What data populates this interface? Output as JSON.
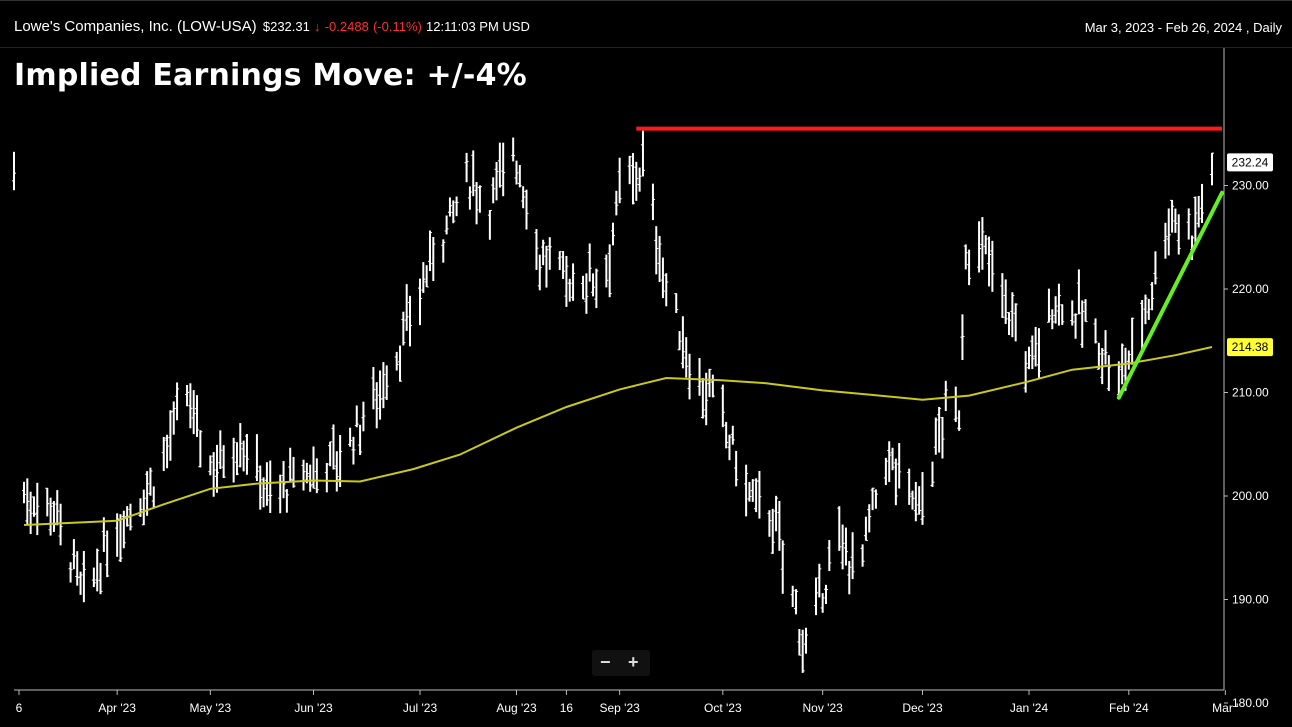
{
  "header": {
    "company": "Lowe's Companies, Inc.",
    "symbol": "(LOW-USA)",
    "price": "$232.31",
    "change": "-0.2488",
    "change_pct": "(-0.11%)",
    "time": "12:11:03 PM USD",
    "range": "Mar 3, 2023 - Feb 26, 2024 , Daily",
    "down_color": "#ff3030"
  },
  "headline": "Implied Earnings Move: +/-4%",
  "zoom": {
    "minus": "−",
    "plus": "+"
  },
  "chart_data": {
    "type": "bar",
    "style": "ohlc-daily",
    "x_tick_labels": [
      "6",
      "Apr '23",
      "May '23",
      "Jun '23",
      "Jul '23",
      "Aug '23",
      "16",
      "Sep '23",
      "Oct '23",
      "Nov '23",
      "Dec '23",
      "Jan '24",
      "Feb '24",
      "Mar '"
    ],
    "y_ticks": [
      "230.00",
      "220.00",
      "210.00",
      "200.00",
      "190.00",
      "180.00"
    ],
    "ylim": [
      179,
      237
    ],
    "last_price_label": "232.24",
    "ma_label": "214.38",
    "colors": {
      "bars": "#ffffff",
      "ma": "#c8c81e",
      "resistance": "#ff1a1a",
      "trend": "#66ee22",
      "ma_badge": "#ffff33"
    },
    "resistance": {
      "start": "Sep 6 '23",
      "end": "Feb 26 '24",
      "value": 235.5
    },
    "trendline": {
      "start": {
        "date": "Jan 29 '24",
        "value": 209.5
      },
      "end": {
        "date": "Feb 26 '24",
        "value": 229.3
      }
    },
    "moving_average": [
      [
        "Mar 6 '23",
        197.2
      ],
      [
        "Apr 3 '23",
        197.6
      ],
      [
        "Apr 17 '23",
        199.2
      ],
      [
        "May 1 '23",
        200.7
      ],
      [
        "May 15 '23",
        201.2
      ],
      [
        "Jun 1 '23",
        201.5
      ],
      [
        "Jun 15 '23",
        201.4
      ],
      [
        "Jul 1 '23",
        202.6
      ],
      [
        "Jul 15 '23",
        204.0
      ],
      [
        "Aug 1 '23",
        206.6
      ],
      [
        "Aug 16 '23",
        208.6
      ],
      [
        "Sep 1 '23",
        210.3
      ],
      [
        "Sep 15 '23",
        211.4
      ],
      [
        "Oct 1 '23",
        211.2
      ],
      [
        "Oct 15 '23",
        210.9
      ],
      [
        "Nov 1 '23",
        210.2
      ],
      [
        "Nov 15 '23",
        209.8
      ],
      [
        "Dec 1 '23",
        209.3
      ],
      [
        "Dec 15 '23",
        209.7
      ],
      [
        "Jan 1 '24",
        211.0
      ],
      [
        "Jan 15 '24",
        212.2
      ],
      [
        "Feb 1 '24",
        212.8
      ],
      [
        "Feb 15 '24",
        213.6
      ],
      [
        "Feb 26 '24",
        214.4
      ]
    ],
    "anchors": [
      [
        "Mar 6 '23",
        200.0
      ],
      [
        "Mar 15 '23",
        199.0
      ],
      [
        "Mar 24 '23",
        190.0
      ],
      [
        "Apr 3 '23",
        197.0
      ],
      [
        "Apr 14 '23",
        201.5
      ],
      [
        "Apr 24 '23",
        209.5
      ],
      [
        "May 1 '23",
        203.0
      ],
      [
        "May 10 '23",
        205.5
      ],
      [
        "May 19 '23",
        200.0
      ],
      [
        "Jun 1 '23",
        202.5
      ],
      [
        "Jun 10 '23",
        204.0
      ],
      [
        "Jun 20 '23",
        210.0
      ],
      [
        "Jun 28 '23",
        215.0
      ],
      [
        "Jul 7 '23",
        223.5
      ],
      [
        "Jul 18 '23",
        230.5
      ],
      [
        "Jul 24 '23",
        228.0
      ],
      [
        "Jul 31 '23",
        234.0
      ],
      [
        "Aug 8 '23",
        223.0
      ],
      [
        "Aug 18 '23",
        220.5
      ],
      [
        "Aug 28 '23",
        222.0
      ],
      [
        "Sep 1 '23",
        229.0
      ],
      [
        "Sep 8 '23",
        232.0
      ],
      [
        "Sep 15 '23",
        220.0
      ],
      [
        "Sep 22 '23",
        213.0
      ],
      [
        "Oct 1 '23",
        208.0
      ],
      [
        "Oct 10 '23",
        200.0
      ],
      [
        "Oct 17 '23",
        198.0
      ],
      [
        "Oct 27 '23",
        185.0
      ],
      [
        "Nov 5 '23",
        195.5
      ],
      [
        "Nov 12 '23",
        193.0
      ],
      [
        "Nov 20 '23",
        203.5
      ],
      [
        "Nov 30 '23",
        199.0
      ],
      [
        "Dec 8 '23",
        208.0
      ],
      [
        "Dec 12 '23",
        208.0
      ],
      [
        "Dec 14 '23",
        224.0
      ],
      [
        "Dec 21 '23",
        223.0
      ],
      [
        "Jan 2 '24",
        212.5
      ],
      [
        "Jan 10 '24",
        219.0
      ],
      [
        "Jan 19 '24",
        217.0
      ],
      [
        "Jan 29 '24",
        211.0
      ],
      [
        "Feb 7 '24",
        219.0
      ],
      [
        "Feb 13 '24",
        227.0
      ],
      [
        "Feb 20 '24",
        225.5
      ],
      [
        "Feb 26 '24",
        232.0
      ]
    ]
  }
}
